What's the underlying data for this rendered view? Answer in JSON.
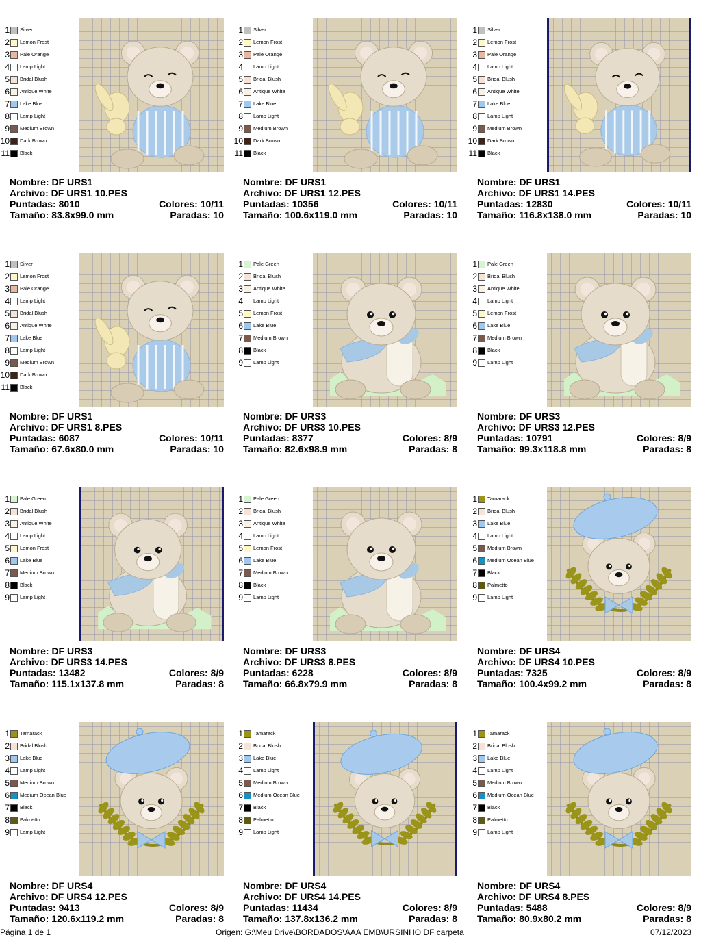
{
  "palettes": {
    "urs1": [
      {
        "name": "Silver",
        "color": "#c0c0c0"
      },
      {
        "name": "Lemon Frost",
        "color": "#fdf8c6"
      },
      {
        "name": "Pale Orange",
        "color": "#e8b7a1"
      },
      {
        "name": "Lamp Light",
        "color": "#ffffff"
      },
      {
        "name": "Bridal Blush",
        "color": "#f5e3d8"
      },
      {
        "name": "Antique White",
        "color": "#f7f1e6"
      },
      {
        "name": "Lake Blue",
        "color": "#9ec8ee"
      },
      {
        "name": "Lamp Light",
        "color": "#ffffff"
      },
      {
        "name": "Medium Brown",
        "color": "#7a5a4e"
      },
      {
        "name": "Dark Brown",
        "color": "#3a2418"
      },
      {
        "name": "Black",
        "color": "#000000"
      }
    ],
    "urs3": [
      {
        "name": "Pale Green",
        "color": "#d4f5cf"
      },
      {
        "name": "Bridal Blush",
        "color": "#f5e3d8"
      },
      {
        "name": "Antique White",
        "color": "#f7f1e6"
      },
      {
        "name": "Lamp Light",
        "color": "#ffffff"
      },
      {
        "name": "Lemon Frost",
        "color": "#fdf8c6"
      },
      {
        "name": "Lake Blue",
        "color": "#9ec8ee"
      },
      {
        "name": "Medium Brown",
        "color": "#7a5a4e"
      },
      {
        "name": "Black",
        "color": "#000000"
      },
      {
        "name": "Lamp Light",
        "color": "#ffffff"
      }
    ],
    "urs4": [
      {
        "name": "Tamarack",
        "color": "#9a9418"
      },
      {
        "name": "Bridal Blush",
        "color": "#f5e3d8"
      },
      {
        "name": "Lake Blue",
        "color": "#9ec8ee"
      },
      {
        "name": "Lamp Light",
        "color": "#ffffff"
      },
      {
        "name": "Medium Brown",
        "color": "#7a5a4e"
      },
      {
        "name": "Medium Ocean Blue",
        "color": "#1890c0"
      },
      {
        "name": "Black",
        "color": "#000000"
      },
      {
        "name": "Palmetto",
        "color": "#5e5a14"
      },
      {
        "name": "Lamp Light",
        "color": "#ffffff"
      }
    ]
  },
  "cards": [
    {
      "palette": "urs1",
      "design": "urs1",
      "bordered": false,
      "nombre": "Nombre: DF URS1",
      "archivo": "Archivo: DF URS1 10.PES",
      "puntadas": "Puntadas: 8010",
      "colores": "Colores: 10/11",
      "tamano": "Tamaño: 83.8x99.0 mm",
      "paradas": "Paradas: 10"
    },
    {
      "palette": "urs1",
      "design": "urs1",
      "bordered": false,
      "nombre": "Nombre: DF URS1",
      "archivo": "Archivo: DF URS1 12.PES",
      "puntadas": "Puntadas: 10356",
      "colores": "Colores: 10/11",
      "tamano": "Tamaño: 100.6x119.0 mm",
      "paradas": "Paradas: 10"
    },
    {
      "palette": "urs1",
      "design": "urs1",
      "bordered": true,
      "nombre": "Nombre: DF URS1",
      "archivo": "Archivo: DF URS1 14.PES",
      "puntadas": "Puntadas: 12830",
      "colores": "Colores: 10/11",
      "tamano": "Tamaño: 116.8x138.0 mm",
      "paradas": "Paradas: 10"
    },
    {
      "palette": "urs1",
      "design": "urs1",
      "bordered": false,
      "nombre": "Nombre: DF URS1",
      "archivo": "Archivo: DF URS1 8.PES",
      "puntadas": "Puntadas: 6087",
      "colores": "Colores: 10/11",
      "tamano": "Tamaño: 67.6x80.0 mm",
      "paradas": "Paradas: 10"
    },
    {
      "palette": "urs3",
      "design": "urs3",
      "bordered": false,
      "nombre": "Nombre: DF URS3",
      "archivo": "Archivo: DF URS3 10.PES",
      "puntadas": "Puntadas: 8377",
      "colores": "Colores: 8/9",
      "tamano": "Tamaño: 82.6x98.9 mm",
      "paradas": "Paradas: 8"
    },
    {
      "palette": "urs3",
      "design": "urs3",
      "bordered": false,
      "nombre": "Nombre: DF URS3",
      "archivo": "Archivo: DF URS3 12.PES",
      "puntadas": "Puntadas: 10791",
      "colores": "Colores: 8/9",
      "tamano": "Tamaño: 99.3x118.8 mm",
      "paradas": "Paradas: 8"
    },
    {
      "palette": "urs3",
      "design": "urs3",
      "bordered": true,
      "nombre": "Nombre: DF URS3",
      "archivo": "Archivo: DF URS3 14.PES",
      "puntadas": "Puntadas: 13482",
      "colores": "Colores: 8/9",
      "tamano": "Tamaño: 115.1x137.8 mm",
      "paradas": "Paradas: 8"
    },
    {
      "palette": "urs3",
      "design": "urs3",
      "bordered": false,
      "nombre": "Nombre: DF URS3",
      "archivo": "Archivo: DF URS3 8.PES",
      "puntadas": "Puntadas: 6228",
      "colores": "Colores: 8/9",
      "tamano": "Tamaño: 66.8x79.9 mm",
      "paradas": "Paradas: 8"
    },
    {
      "palette": "urs4",
      "design": "urs4",
      "bordered": false,
      "nombre": "Nombre: DF URS4",
      "archivo": "Archivo: DF URS4 10.PES",
      "puntadas": "Puntadas: 7325",
      "colores": "Colores: 8/9",
      "tamano": "Tamaño: 100.4x99.2 mm",
      "paradas": "Paradas: 8"
    },
    {
      "palette": "urs4",
      "design": "urs4",
      "bordered": false,
      "nombre": "Nombre: DF URS4",
      "archivo": "Archivo: DF URS4 12.PES",
      "puntadas": "Puntadas: 9413",
      "colores": "Colores: 8/9",
      "tamano": "Tamaño: 120.6x119.2 mm",
      "paradas": "Paradas: 8"
    },
    {
      "palette": "urs4",
      "design": "urs4",
      "bordered": true,
      "nombre": "Nombre: DF URS4",
      "archivo": "Archivo: DF URS4 14.PES",
      "puntadas": "Puntadas: 11434",
      "colores": "Colores: 8/9",
      "tamano": "Tamaño: 137.8x136.2 mm",
      "paradas": "Paradas: 8"
    },
    {
      "palette": "urs4",
      "design": "urs4",
      "bordered": false,
      "nombre": "Nombre: DF URS4",
      "archivo": "Archivo: DF URS4 8.PES",
      "puntadas": "Puntadas: 5488",
      "colores": "Colores: 8/9",
      "tamano": "Tamaño: 80.9x80.2 mm",
      "paradas": "Paradas: 8"
    }
  ],
  "footer": {
    "page": "Página 1 de 1",
    "origin": "Origen: G:\\Meu Drive\\BORDADOS\\AAA EMB\\URSINHO DF carpeta",
    "date": "07/12/2023"
  }
}
